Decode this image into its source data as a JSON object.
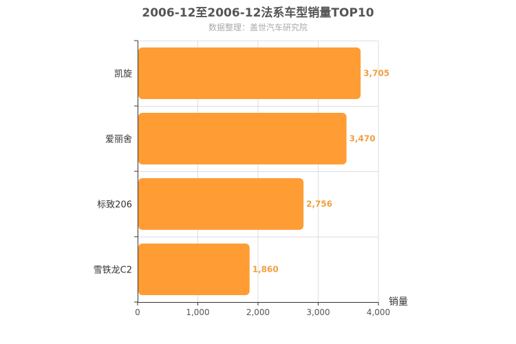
{
  "chart_data": {
    "type": "bar",
    "orientation": "horizontal",
    "title": "2006-12至2006-12法系车型销量TOP10",
    "subtitle": "数据整理：盖世汽车研究院",
    "categories": [
      "凯旋",
      "爱丽舍",
      "标致206",
      "雪铁龙C2"
    ],
    "values": [
      3705,
      3470,
      2756,
      1860
    ],
    "value_labels": [
      "3,705",
      "3,470",
      "2,756",
      "1,860"
    ],
    "xlabel": "销量",
    "xlim": [
      0,
      4000
    ],
    "x_ticks": [
      0,
      1000,
      2000,
      3000,
      4000
    ],
    "x_tick_labels": [
      "0",
      "1,000",
      "2,000",
      "3,000",
      "4,000"
    ],
    "grid": true,
    "bar_color": "#ff9c33"
  }
}
